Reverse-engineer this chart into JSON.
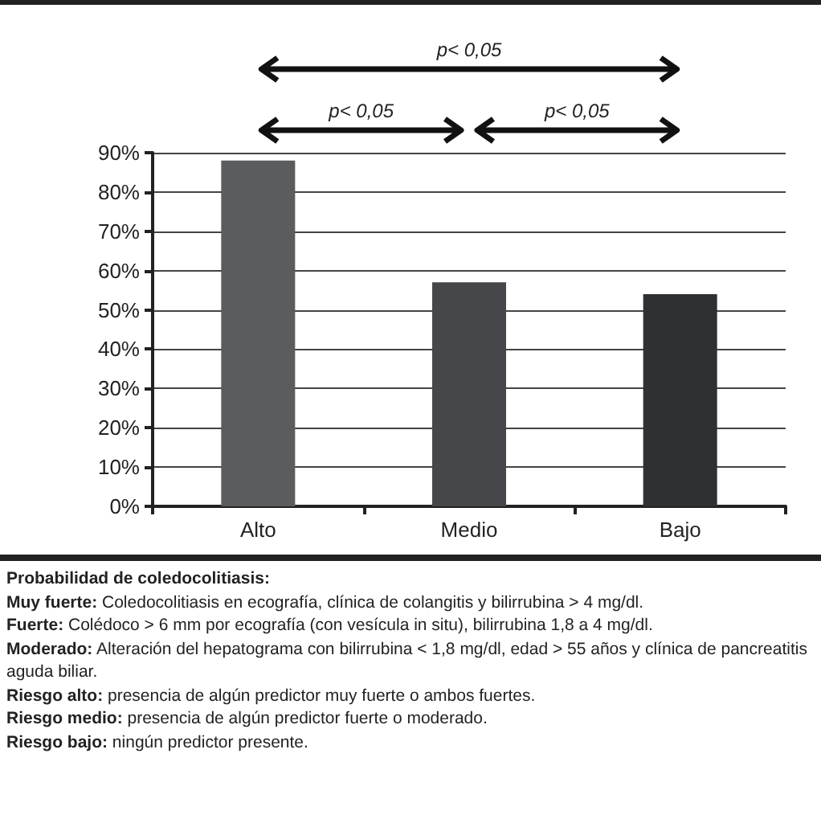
{
  "chart_data": {
    "type": "bar",
    "categories": [
      "Alto",
      "Medio",
      "Bajo"
    ],
    "values": [
      88,
      57,
      54
    ],
    "colors": [
      "#5a5c5e",
      "#45474a",
      "#2e3032"
    ],
    "ylim": [
      0,
      90
    ],
    "yticks": [
      {
        "value": 0,
        "label": "0%"
      },
      {
        "value": 10,
        "label": "10%"
      },
      {
        "value": 20,
        "label": "20%"
      },
      {
        "value": 30,
        "label": "30%"
      },
      {
        "value": 40,
        "label": "40%"
      },
      {
        "value": 50,
        "label": "50%"
      },
      {
        "value": 60,
        "label": "60%"
      },
      {
        "value": 70,
        "label": "70%"
      },
      {
        "value": 80,
        "label": "80%"
      },
      {
        "value": 90,
        "label": "90%"
      }
    ],
    "grid": "y",
    "annotations": [
      "p< 0,05",
      "p< 0,05",
      "p< 0,05",
      "Probabilidad de coledocolitiasis:",
      "Muy fuerte: Coledocolitiasis en ecografía, clínica de colangitis y bilirrubina > 4 mg/dl.",
      "Fuerte: Colédoco > 6 mm por ecografía (con vesícula in situ), bilirrubina 1,8 a 4 mg/dl.",
      "Moderado: Alteración del hepatograma con bilirrubina < 1,8 mg/dl, edad > 55 años y clínica de pancreatitis aguda biliar.",
      "Riesgo alto: presencia de algún predictor muy fuerte o ambos fuertes.",
      "Riesgo medio: presencia de algún predictor fuerte o moderado.",
      "Riesgo bajo: ningún predictor presente."
    ]
  }
}
